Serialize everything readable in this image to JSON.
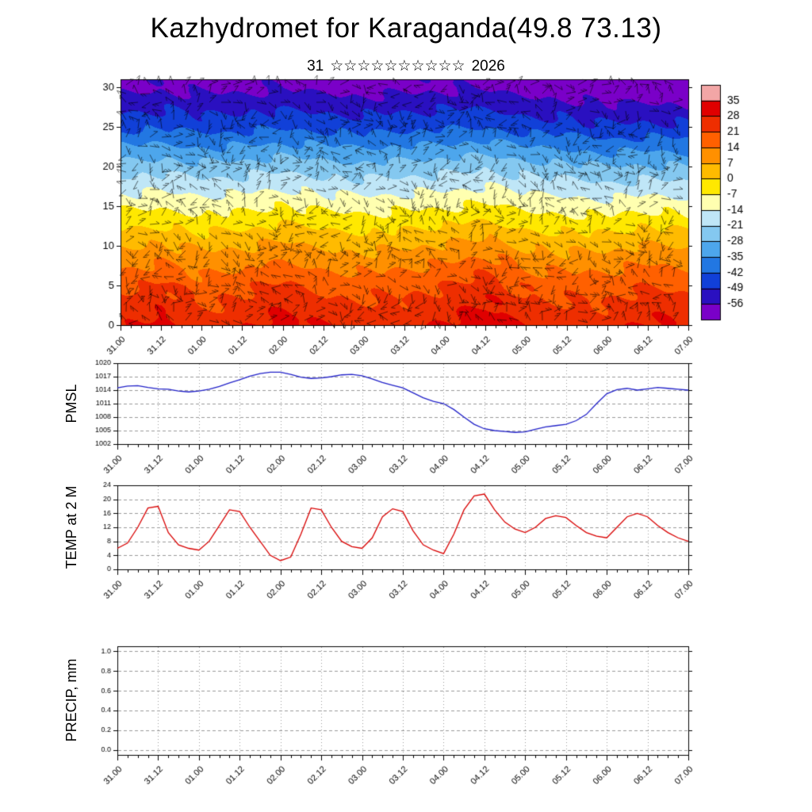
{
  "title": "Kazhydromet for Karaganda(49.8 73.13)",
  "subtitle": {
    "day": "31",
    "stars": "☆☆☆☆☆☆☆☆☆☆",
    "year": "2026"
  },
  "time_labels": [
    "31.00",
    "31.12",
    "01.00",
    "01.12",
    "02.00",
    "02.12",
    "03.00",
    "03.12",
    "04.00",
    "04.12",
    "05.00",
    "05.12",
    "06.00",
    "06.12",
    "07.00"
  ],
  "panels": {
    "pmsl": {
      "label": "PMSL"
    },
    "temp": {
      "label": "TEMP at 2 M"
    },
    "precip": {
      "label": "PRECIP, mm"
    }
  },
  "chart_data": [
    {
      "type": "heatmap",
      "name": "upper-air-temperature-time-height-section",
      "x_ticklabels": [
        "31.00",
        "31.12",
        "01.00",
        "01.12",
        "02.00",
        "02.12",
        "03.00",
        "03.12",
        "04.00",
        "04.12",
        "05.00",
        "05.12",
        "06.00",
        "06.12",
        "07.00"
      ],
      "x_hours": [
        0,
        12,
        24,
        36,
        48,
        60,
        72,
        84,
        96,
        108,
        120,
        132,
        144,
        156,
        168
      ],
      "levels": [
        0,
        5,
        10,
        15,
        20,
        25,
        30
      ],
      "ylim": [
        0,
        31
      ],
      "yticks": [
        0,
        5,
        10,
        15,
        20,
        25,
        30
      ],
      "overlay": "wind-barbs",
      "grid_temps_c": [
        [
          26,
          30,
          24,
          26,
          31,
          27,
          25,
          26,
          29,
          33,
          27,
          25,
          25,
          30,
          26
        ],
        [
          19,
          22,
          17,
          19,
          23,
          19,
          18,
          19,
          21,
          25,
          19,
          18,
          18,
          21,
          19
        ],
        [
          6,
          8,
          5,
          6,
          9,
          6,
          5,
          6,
          8,
          11,
          6,
          5,
          5,
          8,
          6
        ],
        [
          -9,
          -8,
          -10,
          -9,
          -7,
          -9,
          -10,
          -9,
          -8,
          -6,
          -9,
          -10,
          -11,
          -9,
          -10
        ],
        [
          -25,
          -24,
          -26,
          -25,
          -23,
          -25,
          -26,
          -25,
          -24,
          -22,
          -25,
          -26,
          -28,
          -27,
          -28
        ],
        [
          -44,
          -43,
          -45,
          -44,
          -43,
          -44,
          -45,
          -44,
          -43,
          -42,
          -45,
          -46,
          -48,
          -47,
          -48
        ],
        [
          -58,
          -57,
          -58,
          -58,
          -57,
          -58,
          -59,
          -58,
          -57,
          -57,
          -59,
          -60,
          -62,
          -61,
          -62
        ]
      ],
      "colorbar": {
        "ticks": [
          35,
          28,
          21,
          14,
          7,
          0,
          -7,
          -14,
          -21,
          -28,
          -35,
          -42,
          -49,
          -56
        ],
        "segment_colors": [
          "#f2a6a6",
          "#e00000",
          "#ee2e00",
          "#ff6000",
          "#ff9000",
          "#ffbb00",
          "#ffe800",
          "#ffffb0",
          "#bfe6f7",
          "#84c8f0",
          "#4da6ec",
          "#2277e2",
          "#1140d8",
          "#2a10c0",
          "#7a00c8"
        ]
      }
    },
    {
      "type": "line",
      "name": "pmsl",
      "title": "PMSL",
      "series_color": "#2020c8",
      "ylim": [
        1002,
        1020
      ],
      "yticks": [
        1002,
        1005,
        1008,
        1011,
        1014,
        1017,
        1020
      ],
      "ytick_labels": [
        "1002",
        "1005",
        "1008",
        "1011",
        "1014",
        "1017",
        "1020"
      ],
      "x_hours": [
        0,
        3,
        6,
        9,
        12,
        15,
        18,
        21,
        24,
        27,
        30,
        33,
        36,
        39,
        42,
        45,
        48,
        51,
        54,
        57,
        60,
        63,
        66,
        69,
        72,
        75,
        78,
        81,
        84,
        87,
        90,
        93,
        96,
        99,
        102,
        105,
        108,
        111,
        114,
        117,
        120,
        123,
        126,
        129,
        132,
        135,
        138,
        141,
        144,
        147,
        150,
        153,
        156,
        159,
        162,
        165,
        168
      ],
      "values": [
        1014.5,
        1014.9,
        1015.0,
        1014.6,
        1014.3,
        1014.2,
        1013.8,
        1013.6,
        1013.8,
        1014.2,
        1014.8,
        1015.6,
        1016.3,
        1017.1,
        1017.7,
        1018.0,
        1018.0,
        1017.5,
        1016.9,
        1016.6,
        1016.7,
        1017.0,
        1017.4,
        1017.5,
        1017.2,
        1016.5,
        1015.7,
        1015.1,
        1014.5,
        1013.4,
        1012.3,
        1011.5,
        1011.0,
        1009.7,
        1008.0,
        1006.4,
        1005.4,
        1005.0,
        1004.8,
        1004.6,
        1004.7,
        1005.3,
        1005.8,
        1006.1,
        1006.4,
        1007.2,
        1008.6,
        1011.0,
        1013.2,
        1014.1,
        1014.4,
        1014.0,
        1014.3,
        1014.6,
        1014.4,
        1014.2,
        1014.0
      ]
    },
    {
      "type": "line",
      "name": "temp-2m",
      "title": "TEMP at 2 M",
      "series_color": "#d80000",
      "ylim": [
        0,
        24
      ],
      "yticks": [
        0,
        4,
        8,
        12,
        16,
        20,
        24
      ],
      "ytick_labels": [
        "0",
        "4",
        "8",
        "12",
        "16",
        "20",
        "24"
      ],
      "x_hours": [
        0,
        3,
        6,
        9,
        12,
        15,
        18,
        21,
        24,
        27,
        30,
        33,
        36,
        39,
        42,
        45,
        48,
        51,
        54,
        57,
        60,
        63,
        66,
        69,
        72,
        75,
        78,
        81,
        84,
        87,
        90,
        93,
        96,
        99,
        102,
        105,
        108,
        111,
        114,
        117,
        120,
        123,
        126,
        129,
        132,
        135,
        138,
        141,
        144,
        147,
        150,
        153,
        156,
        159,
        162,
        165,
        168
      ],
      "values": [
        6.0,
        7.5,
        12.0,
        17.5,
        18.0,
        10.5,
        7.0,
        6.0,
        5.5,
        8.0,
        12.5,
        17.0,
        16.5,
        12.0,
        8.0,
        4.0,
        2.5,
        3.5,
        10.0,
        17.5,
        17.0,
        12.0,
        8.0,
        6.5,
        6.0,
        9.0,
        15.0,
        17.3,
        16.5,
        11.0,
        7.0,
        5.5,
        4.5,
        10.0,
        17.0,
        21.0,
        21.5,
        17.0,
        13.5,
        11.5,
        10.5,
        12.0,
        14.5,
        15.3,
        14.8,
        12.5,
        10.5,
        9.5,
        9.0,
        12.0,
        15.0,
        16.0,
        15.0,
        12.5,
        10.5,
        9.0,
        8.0
      ]
    },
    {
      "type": "line",
      "name": "precip",
      "title": "PRECIP, mm",
      "series_color": "#00a000",
      "ylim": [
        -0.05,
        1.05
      ],
      "yticks": [
        0,
        0.2,
        0.4,
        0.6,
        0.8,
        1.0
      ],
      "ytick_labels": [
        "0.0",
        "0.2",
        "0.4",
        "0.6",
        "0.8",
        "1.0"
      ],
      "x_hours": [],
      "values": []
    }
  ]
}
